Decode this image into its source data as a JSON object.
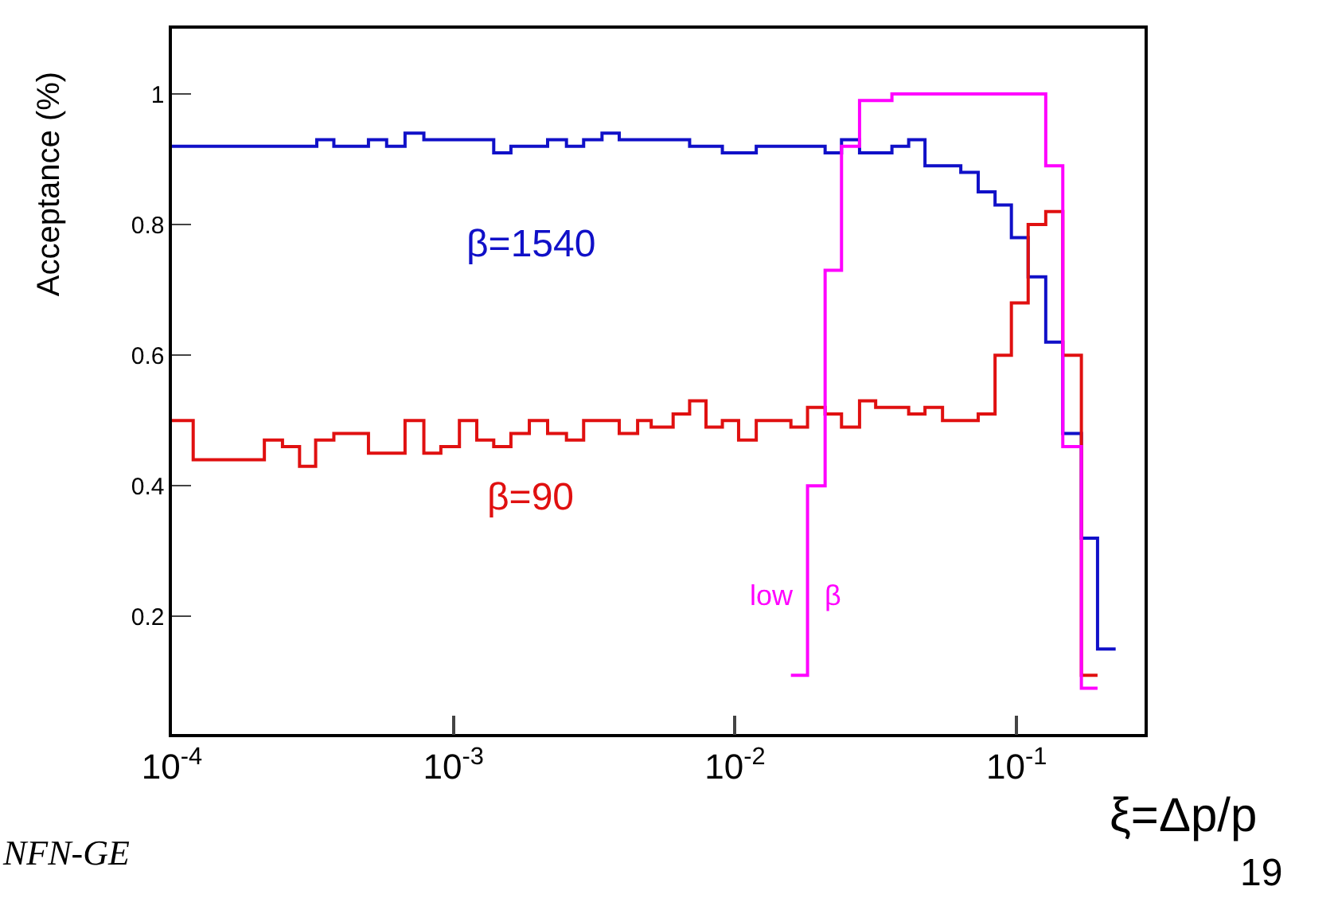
{
  "chart_data": {
    "type": "step",
    "xlabel": "ξ=Δp/p",
    "ylabel": "Acceptance (%)",
    "log": "x",
    "grid": false,
    "legend": false,
    "xlim": [
      0.0001,
      0.285
    ],
    "xticks": [
      {
        "value": 0.0001,
        "label": "10$^{-4}$"
      },
      {
        "value": 0.001,
        "label": "10$^{-3}$"
      },
      {
        "value": 0.01,
        "label": "10$^{-2}$"
      },
      {
        "value": 0.1,
        "label": "10$^{-1}$"
      }
    ],
    "ylim": [
      0.02,
      1.1
    ],
    "yticks": [
      {
        "value": 0.2,
        "label": "0.2"
      },
      {
        "value": 0.4,
        "label": "0.4"
      },
      {
        "value": 0.6,
        "label": "0.6"
      },
      {
        "value": 0.8,
        "label": "0.8"
      },
      1
    ],
    "series": [
      {
        "name": "β=1540",
        "color": "#1010c8",
        "x": [
          0.0001,
          0.000281,
          0.000327,
          0.000376,
          0.000433,
          0.000499,
          0.000579,
          0.000673,
          0.000785,
          0.000902,
          0.00105,
          0.00121,
          0.00139,
          0.0016,
          0.00216,
          0.00252,
          0.0029,
          0.00337,
          0.00388,
          0.00451,
          0.00504,
          0.00589,
          0.0069,
          0.00789,
          0.00902,
          0.0103,
          0.0119,
          0.0158,
          0.0181,
          0.0209,
          0.0239,
          0.0277,
          0.0316,
          0.0361,
          0.0414,
          0.0473,
          0.0546,
          0.0634,
          0.0731,
          0.0839,
          0.0959,
          0.11,
          0.127,
          0.146,
          0.17,
          0.194,
          0.225
        ],
        "values": [
          0.92,
          0.92,
          0.93,
          0.92,
          0.92,
          0.93,
          0.92,
          0.94,
          0.93,
          0.93,
          0.93,
          0.93,
          0.91,
          0.92,
          0.93,
          0.92,
          0.93,
          0.94,
          0.93,
          0.93,
          0.93,
          0.93,
          0.92,
          0.92,
          0.91,
          0.91,
          0.92,
          0.92,
          0.92,
          0.91,
          0.93,
          0.91,
          0.91,
          0.92,
          0.93,
          0.89,
          0.89,
          0.88,
          0.85,
          0.83,
          0.78,
          0.72,
          0.62,
          0.48,
          0.32,
          0.15,
          0.15
        ]
      },
      {
        "name": "β=90",
        "color": "#e01010",
        "x": [
          0.0001,
          0.000119,
          0.000181,
          0.000213,
          0.000247,
          0.000284,
          0.000324,
          0.000376,
          0.000499,
          0.000673,
          0.000785,
          0.000902,
          0.00105,
          0.00121,
          0.00139,
          0.0016,
          0.00186,
          0.00216,
          0.00252,
          0.0029,
          0.00388,
          0.00451,
          0.00504,
          0.00603,
          0.0069,
          0.00789,
          0.00902,
          0.0103,
          0.0119,
          0.0158,
          0.0181,
          0.0209,
          0.0239,
          0.0277,
          0.0316,
          0.0414,
          0.0473,
          0.0546,
          0.0634,
          0.0731,
          0.0839,
          0.0959,
          0.11,
          0.127,
          0.146,
          0.17,
          0.194
        ],
        "values": [
          0.5,
          0.44,
          0.44,
          0.47,
          0.46,
          0.43,
          0.47,
          0.48,
          0.45,
          0.5,
          0.45,
          0.46,
          0.5,
          0.47,
          0.46,
          0.48,
          0.5,
          0.48,
          0.47,
          0.5,
          0.48,
          0.5,
          0.49,
          0.51,
          0.53,
          0.49,
          0.5,
          0.47,
          0.5,
          0.49,
          0.52,
          0.51,
          0.49,
          0.53,
          0.52,
          0.51,
          0.52,
          0.5,
          0.5,
          0.51,
          0.6,
          0.68,
          0.8,
          0.82,
          0.6,
          0.11,
          0.11
        ]
      },
      {
        "name": "low    β",
        "color": "#ff00ff",
        "x": [
          0.0158,
          0.0181,
          0.0209,
          0.0239,
          0.0277,
          0.0316,
          0.0361,
          0.127,
          0.146,
          0.17,
          0.194
        ],
        "values": [
          0.11,
          0.4,
          0.73,
          0.92,
          0.99,
          0.99,
          1.0,
          0.89,
          0.46,
          0.09,
          0.09
        ]
      }
    ],
    "annotations": [
      "NFN-GE",
      "19"
    ]
  }
}
